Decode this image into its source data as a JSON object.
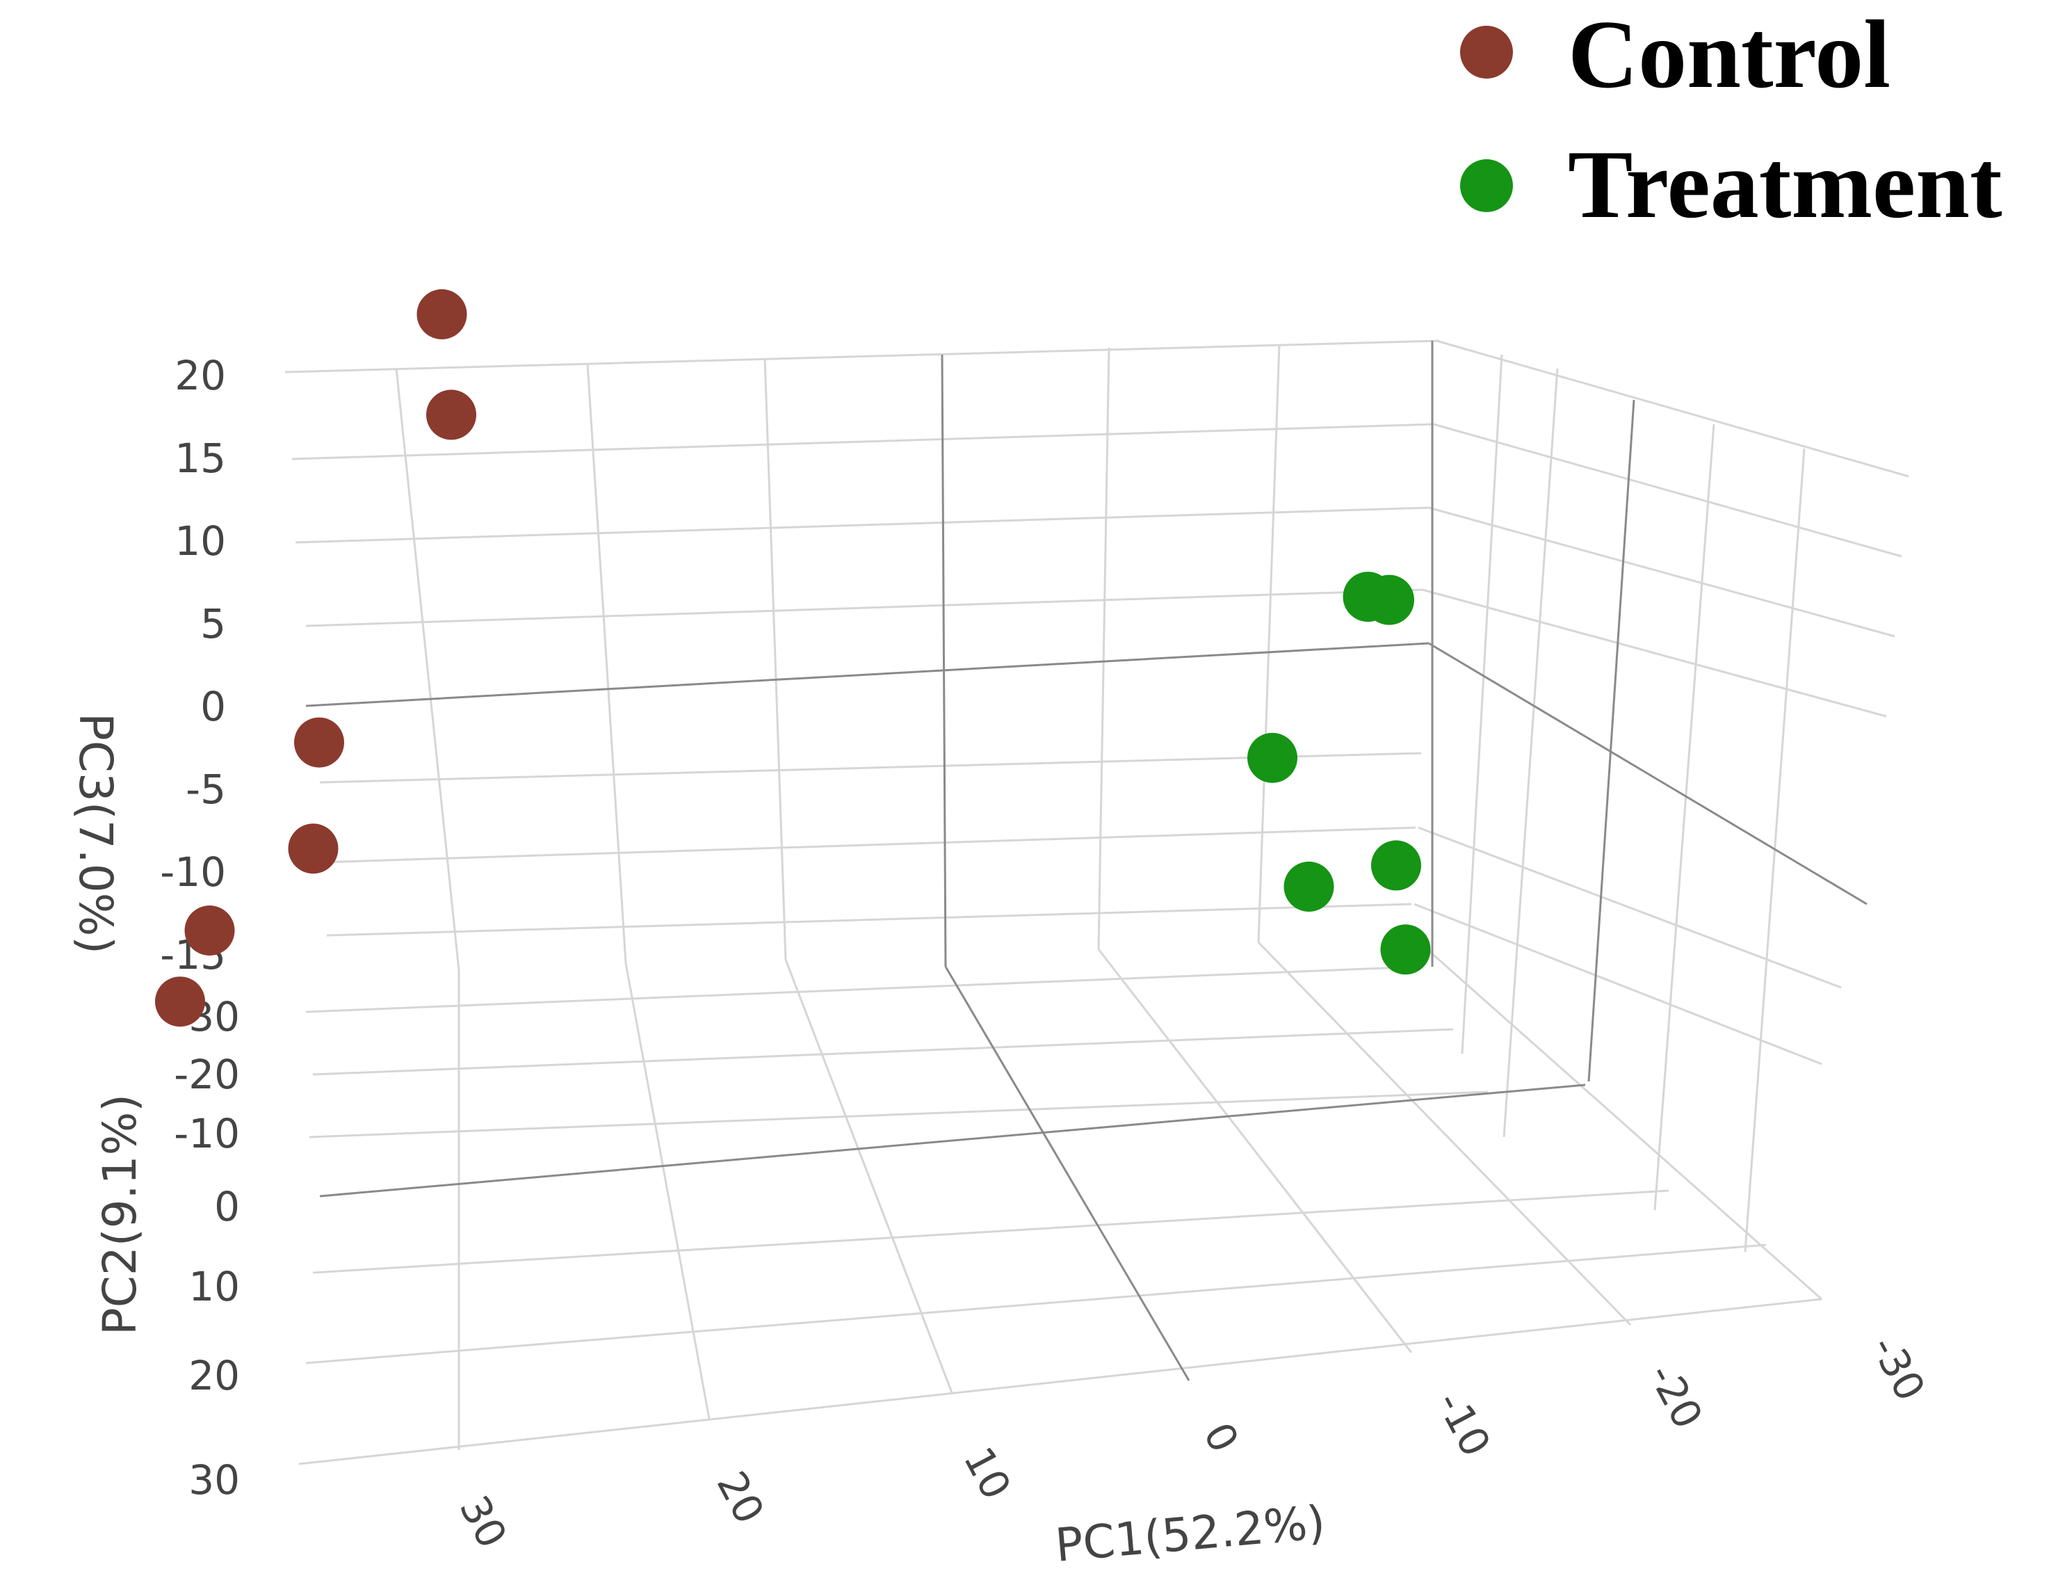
{
  "chart_data": {
    "type": "scatter",
    "projection": "3d",
    "colors": {
      "control": "#8b3a2e",
      "treatment": "#159415",
      "grid": "#d6d6d6",
      "axis": "#8a8a8a"
    },
    "axes": {
      "x": {
        "label": "PC1(52.2%)",
        "range": [
          -30,
          34
        ],
        "ticks": [
          30,
          20,
          10,
          0,
          -10,
          -20,
          -30
        ]
      },
      "y": {
        "label": "PC2(9.1%)",
        "range": [
          -30,
          30
        ],
        "ticks": [
          -30,
          -20,
          -10,
          0,
          10,
          20,
          30
        ]
      },
      "z": {
        "label": "PC3(7.0%)",
        "range": [
          -15,
          20
        ],
        "ticks": [
          20,
          15,
          10,
          5,
          0,
          -5,
          -10,
          -15
        ]
      }
    },
    "legend_position": "top-right",
    "grid": true,
    "series": [
      {
        "name": "Control",
        "color": "#8b3a2e",
        "points": [
          {
            "pc1": 25,
            "pc2": -8,
            "pc3": 16
          },
          {
            "pc1": 24,
            "pc2": -6,
            "pc3": 11
          },
          {
            "pc1": 28,
            "pc2": 2,
            "pc3": -6
          },
          {
            "pc1": 28,
            "pc2": 3,
            "pc3": -12
          },
          {
            "pc1": 34,
            "pc2": -1,
            "pc3": -20
          },
          {
            "pc1": 34,
            "pc2": 4,
            "pc3": -22
          }
        ]
      },
      {
        "name": "Treatment",
        "color": "#159415",
        "points": [
          {
            "pc1": -17,
            "pc2": -14,
            "pc3": 4
          },
          {
            "pc1": -18,
            "pc2": -14,
            "pc3": 4
          },
          {
            "pc1": -15,
            "pc2": -5,
            "pc3": -2
          },
          {
            "pc1": -17,
            "pc2": -4,
            "pc3": -9
          },
          {
            "pc1": -20,
            "pc2": -8,
            "pc3": -9
          },
          {
            "pc1": -21,
            "pc2": -6,
            "pc3": -13
          }
        ]
      }
    ]
  }
}
